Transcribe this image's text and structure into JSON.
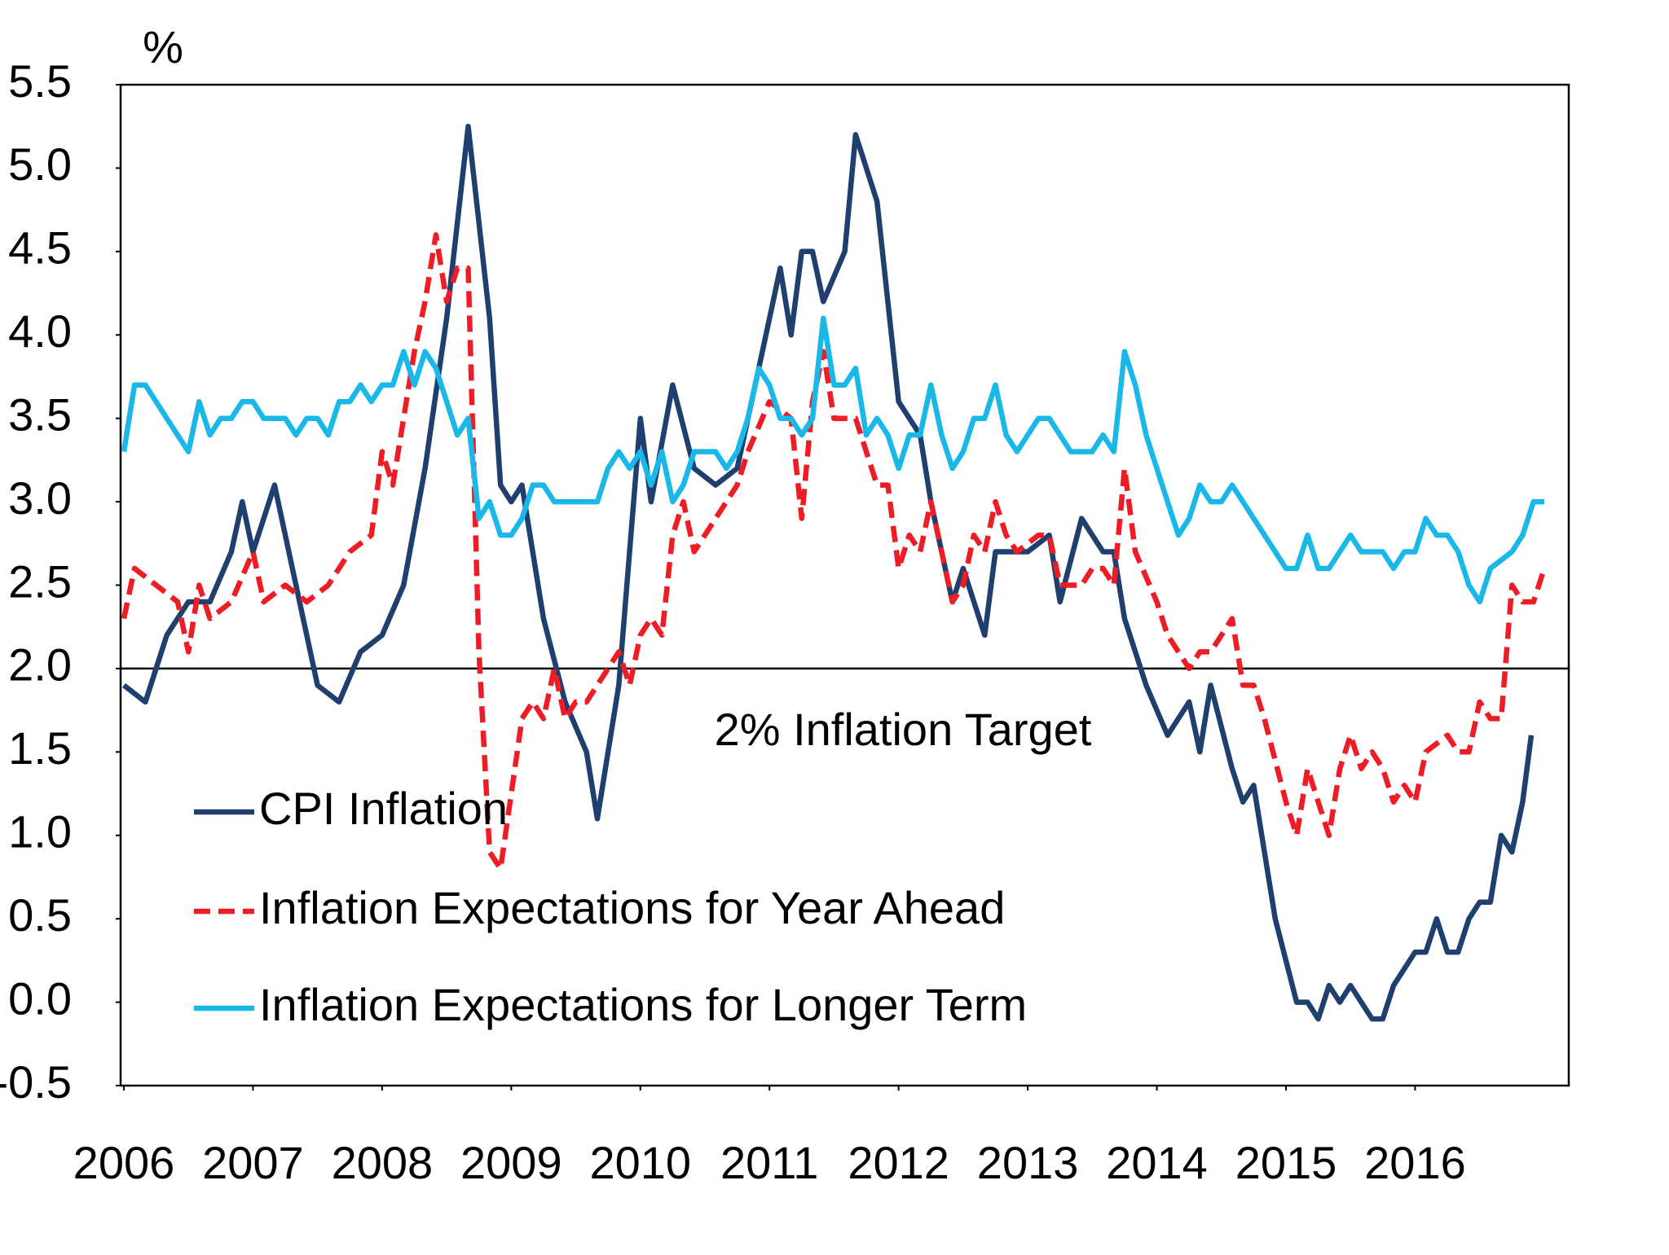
{
  "chart_data": {
    "type": "line",
    "y_label": "%",
    "annotation": "2% Inflation Target",
    "target_line": 2,
    "legend": "lower left",
    "grid": false,
    "xlim": [
      2005.975,
      2017.19
    ],
    "xticks": [
      2006,
      2007,
      2008,
      2009,
      2010,
      2011,
      2012,
      2013,
      2014,
      2015,
      2016
    ],
    "ylim": [
      -0.5,
      5.5
    ],
    "yticks": [
      -0.5,
      {
        "value": 0,
        "label": "0.0"
      },
      0.5,
      {
        "value": 1,
        "label": "1.0"
      },
      1.5,
      {
        "value": 2,
        "label": "2.0"
      },
      2.5,
      {
        "value": 3,
        "label": "3.0"
      },
      3.5,
      {
        "value": 4,
        "label": "4.0"
      },
      4.5,
      {
        "value": 5,
        "label": "5.0"
      },
      5.5
    ],
    "series": [
      {
        "name": "CPI Inflation",
        "color": "#1f3f6e",
        "dash": false,
        "x": [
          2006,
          2006.167,
          2006.333,
          2006.5,
          2006.667,
          2006.833,
          2006.917,
          2007,
          2007.167,
          2007.333,
          2007.5,
          2007.667,
          2007.833,
          2008,
          2008.167,
          2008.333,
          2008.5,
          2008.667,
          2008.833,
          2008.917,
          2009,
          2009.083,
          2009.25,
          2009.417,
          2009.583,
          2009.667,
          2009.833,
          2010,
          2010.083,
          2010.25,
          2010.417,
          2010.583,
          2010.75,
          2010.917,
          2011.083,
          2011.167,
          2011.25,
          2011.333,
          2011.417,
          2011.583,
          2011.667,
          2011.833,
          2012,
          2012.167,
          2012.25,
          2012.417,
          2012.5,
          2012.667,
          2012.75,
          2013,
          2013.167,
          2013.25,
          2013.417,
          2013.583,
          2013.667,
          2013.75,
          2013.917,
          2014.083,
          2014.25,
          2014.333,
          2014.417,
          2014.583,
          2014.667,
          2014.75,
          2014.917,
          2015.083,
          2015.167,
          2015.25,
          2015.333,
          2015.417,
          2015.5,
          2015.667,
          2015.75,
          2015.833,
          2016,
          2016.083,
          2016.167,
          2016.25,
          2016.333,
          2016.417,
          2016.5,
          2016.583,
          2016.667,
          2016.75,
          2016.833,
          2016.9
        ],
        "values": [
          1.9,
          1.8,
          2.2,
          2.4,
          2.4,
          2.7,
          3.0,
          2.7,
          3.1,
          2.5,
          1.9,
          1.8,
          2.1,
          2.2,
          2.5,
          3.2,
          4.1,
          5.25,
          4.1,
          3.1,
          3.0,
          3.1,
          2.3,
          1.8,
          1.5,
          1.1,
          1.9,
          3.5,
          3.0,
          3.7,
          3.2,
          3.1,
          3.2,
          3.8,
          4.4,
          4.0,
          4.5,
          4.5,
          4.2,
          4.5,
          5.2,
          4.8,
          3.6,
          3.4,
          3.0,
          2.4,
          2.6,
          2.2,
          2.7,
          2.7,
          2.8,
          2.4,
          2.9,
          2.7,
          2.7,
          2.3,
          1.9,
          1.6,
          1.8,
          1.5,
          1.9,
          1.4,
          1.2,
          1.3,
          0.5,
          0.0,
          0.0,
          -0.1,
          0.1,
          0.0,
          0.1,
          -0.1,
          -0.1,
          0.1,
          0.3,
          0.3,
          0.5,
          0.3,
          0.3,
          0.5,
          0.6,
          0.6,
          1.0,
          0.9,
          1.2,
          1.6
        ]
      },
      {
        "name": "Inflation Expectations for Year Ahead",
        "color": "#ee1c25",
        "dash": true,
        "x": [
          2006,
          2006.083,
          2006.25,
          2006.417,
          2006.5,
          2006.583,
          2006.667,
          2006.833,
          2007,
          2007.083,
          2007.25,
          2007.417,
          2007.583,
          2007.75,
          2007.917,
          2008,
          2008.083,
          2008.25,
          2008.333,
          2008.417,
          2008.5,
          2008.583,
          2008.667,
          2008.75,
          2008.833,
          2008.917,
          2009.083,
          2009.167,
          2009.25,
          2009.333,
          2009.417,
          2009.5,
          2009.583,
          2009.75,
          2009.833,
          2009.917,
          2010,
          2010.083,
          2010.167,
          2010.25,
          2010.333,
          2010.417,
          2010.583,
          2010.75,
          2010.833,
          2011,
          2011.167,
          2011.25,
          2011.333,
          2011.417,
          2011.5,
          2011.667,
          2011.833,
          2011.917,
          2012,
          2012.083,
          2012.167,
          2012.25,
          2012.417,
          2012.5,
          2012.583,
          2012.667,
          2012.75,
          2012.833,
          2012.917,
          2013.083,
          2013.167,
          2013.25,
          2013.417,
          2013.5,
          2013.583,
          2013.667,
          2013.75,
          2013.833,
          2014,
          2014.083,
          2014.167,
          2014.25,
          2014.333,
          2014.417,
          2014.5,
          2014.583,
          2014.667,
          2014.75,
          2014.833,
          2015,
          2015.083,
          2015.167,
          2015.25,
          2015.333,
          2015.417,
          2015.5,
          2015.583,
          2015.667,
          2015.75,
          2015.833,
          2015.917,
          2016,
          2016.083,
          2016.25,
          2016.333,
          2016.417,
          2016.5,
          2016.583,
          2016.667,
          2016.75,
          2016.833,
          2016.917,
          2017
        ],
        "values": [
          2.3,
          2.6,
          2.5,
          2.4,
          2.1,
          2.5,
          2.3,
          2.4,
          2.7,
          2.4,
          2.5,
          2.4,
          2.5,
          2.7,
          2.8,
          3.3,
          3.1,
          3.9,
          4.2,
          4.6,
          4.2,
          4.4,
          4.4,
          2.1,
          0.9,
          0.8,
          1.7,
          1.8,
          1.7,
          2.0,
          1.7,
          1.8,
          1.8,
          2.0,
          2.1,
          1.9,
          2.2,
          2.3,
          2.2,
          2.8,
          3.0,
          2.7,
          2.9,
          3.1,
          3.3,
          3.6,
          3.5,
          2.9,
          3.6,
          3.9,
          3.5,
          3.5,
          3.1,
          3.1,
          2.6,
          2.8,
          2.7,
          3.0,
          2.4,
          2.5,
          2.8,
          2.7,
          3.0,
          2.8,
          2.7,
          2.8,
          2.8,
          2.5,
          2.5,
          2.6,
          2.6,
          2.5,
          3.2,
          2.7,
          2.4,
          2.2,
          2.1,
          2.0,
          2.1,
          2.1,
          2.2,
          2.3,
          1.9,
          1.9,
          1.7,
          1.2,
          1.0,
          1.4,
          1.2,
          1.0,
          1.4,
          1.6,
          1.4,
          1.5,
          1.4,
          1.2,
          1.3,
          1.2,
          1.5,
          1.6,
          1.5,
          1.5,
          1.8,
          1.7,
          1.7,
          2.5,
          2.4,
          2.4,
          2.6
        ]
      },
      {
        "name": "Inflation Expectations for Longer Term",
        "color": "#1ab8e8",
        "dash": false,
        "x": [
          2006,
          2006.083,
          2006.167,
          2006.333,
          2006.5,
          2006.583,
          2006.667,
          2006.75,
          2006.833,
          2006.917,
          2007,
          2007.083,
          2007.25,
          2007.333,
          2007.417,
          2007.5,
          2007.583,
          2007.667,
          2007.75,
          2007.833,
          2007.917,
          2008,
          2008.083,
          2008.167,
          2008.25,
          2008.333,
          2008.417,
          2008.583,
          2008.667,
          2008.75,
          2008.833,
          2008.917,
          2009,
          2009.083,
          2009.167,
          2009.25,
          2009.333,
          2009.5,
          2009.667,
          2009.75,
          2009.833,
          2009.917,
          2010,
          2010.083,
          2010.167,
          2010.25,
          2010.333,
          2010.417,
          2010.583,
          2010.667,
          2010.75,
          2010.833,
          2010.917,
          2011,
          2011.083,
          2011.167,
          2011.25,
          2011.333,
          2011.417,
          2011.5,
          2011.583,
          2011.667,
          2011.75,
          2011.833,
          2011.917,
          2012,
          2012.083,
          2012.167,
          2012.25,
          2012.333,
          2012.417,
          2012.5,
          2012.583,
          2012.667,
          2012.75,
          2012.833,
          2012.917,
          2013.083,
          2013.167,
          2013.333,
          2013.5,
          2013.583,
          2013.667,
          2013.75,
          2013.833,
          2013.917,
          2014,
          2014.083,
          2014.167,
          2014.25,
          2014.333,
          2014.417,
          2014.5,
          2014.583,
          2014.75,
          2014.917,
          2015,
          2015.083,
          2015.167,
          2015.25,
          2015.333,
          2015.5,
          2015.583,
          2015.75,
          2015.833,
          2015.917,
          2016,
          2016.083,
          2016.167,
          2016.25,
          2016.333,
          2016.417,
          2016.5,
          2016.583,
          2016.75,
          2016.833,
          2016.917,
          2017
        ],
        "values": [
          3.3,
          3.7,
          3.7,
          3.5,
          3.3,
          3.6,
          3.4,
          3.5,
          3.5,
          3.6,
          3.6,
          3.5,
          3.5,
          3.4,
          3.5,
          3.5,
          3.4,
          3.6,
          3.6,
          3.7,
          3.6,
          3.7,
          3.7,
          3.9,
          3.7,
          3.9,
          3.8,
          3.4,
          3.5,
          2.9,
          3.0,
          2.8,
          2.8,
          2.9,
          3.1,
          3.1,
          3.0,
          3.0,
          3.0,
          3.2,
          3.3,
          3.2,
          3.3,
          3.1,
          3.3,
          3.0,
          3.1,
          3.3,
          3.3,
          3.2,
          3.3,
          3.5,
          3.8,
          3.7,
          3.5,
          3.5,
          3.4,
          3.5,
          4.1,
          3.7,
          3.7,
          3.8,
          3.4,
          3.5,
          3.4,
          3.2,
          3.4,
          3.4,
          3.7,
          3.4,
          3.2,
          3.3,
          3.5,
          3.5,
          3.7,
          3.4,
          3.3,
          3.5,
          3.5,
          3.3,
          3.3,
          3.4,
          3.3,
          3.9,
          3.7,
          3.4,
          3.2,
          3.0,
          2.8,
          2.9,
          3.1,
          3.0,
          3.0,
          3.1,
          2.9,
          2.7,
          2.6,
          2.6,
          2.8,
          2.6,
          2.6,
          2.8,
          2.7,
          2.7,
          2.6,
          2.7,
          2.7,
          2.9,
          2.8,
          2.8,
          2.7,
          2.5,
          2.4,
          2.6,
          2.7,
          2.8,
          3.0,
          3.0
        ]
      }
    ]
  }
}
